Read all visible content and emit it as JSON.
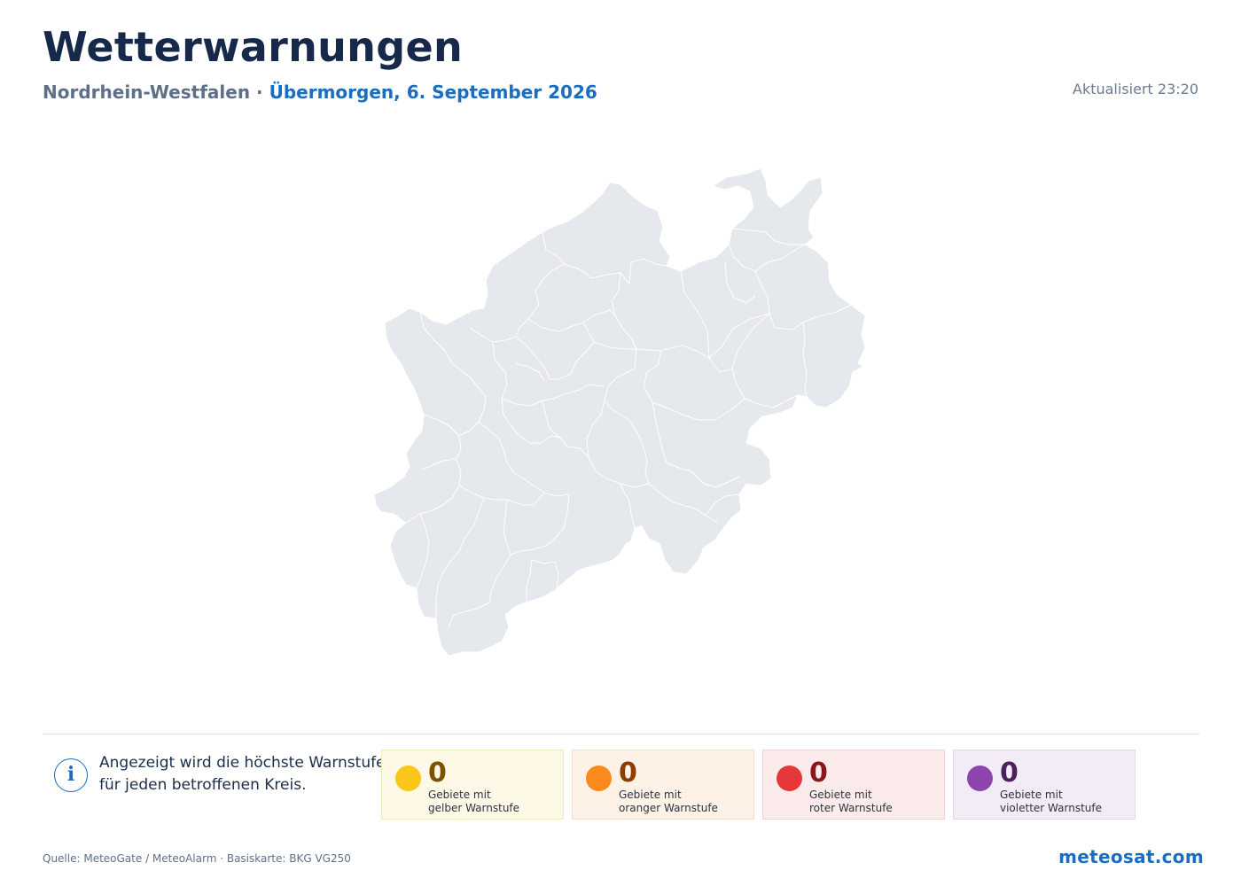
{
  "header": {
    "title": "Wetterwarnungen",
    "region": "Nordrhein-Westfalen",
    "separator": " · ",
    "date": "Übermorgen, 6. September 2026",
    "updated": "Aktualisiert 23:20"
  },
  "map": {
    "fill_color": "#e5e8ec",
    "border_color": "#ffffff"
  },
  "info": {
    "icon": "info-icon",
    "text": "Angezeigt wird die höchste Warnstufe für jeden betroffenen Kreis."
  },
  "summary": [
    {
      "level": "yellow",
      "count": "0",
      "line1": "Gebiete mit",
      "line2": "gelber Warnstufe",
      "color": "#fbc61a"
    },
    {
      "level": "orange",
      "count": "0",
      "line1": "Gebiete mit",
      "line2": "oranger Warnstufe",
      "color": "#fb8a1d"
    },
    {
      "level": "red",
      "count": "0",
      "line1": "Gebiete mit",
      "line2": "roter Warnstufe",
      "color": "#e63739"
    },
    {
      "level": "violet",
      "count": "0",
      "line1": "Gebiete mit",
      "line2": "violetter Warnstufe",
      "color": "#8e44ad"
    }
  ],
  "footer": {
    "source": "Quelle: MeteoGate / MeteoAlarm · Basiskarte: BKG VG250",
    "brand": "meteosat.com"
  }
}
